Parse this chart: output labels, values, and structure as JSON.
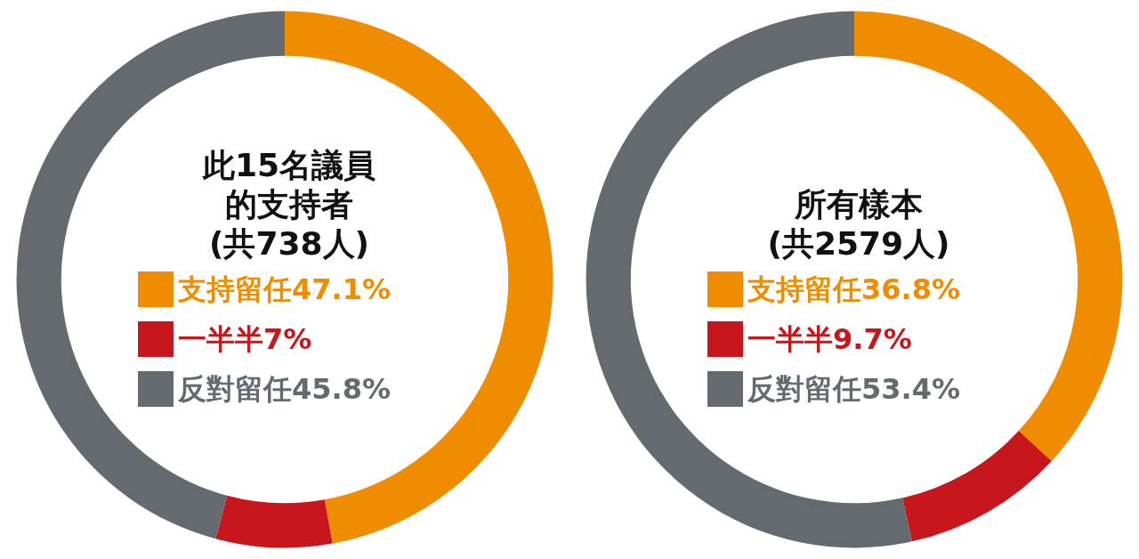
{
  "chart_data": [
    {
      "type": "donut",
      "title": "此15名議員的支持者",
      "subtitle": "(共738人)",
      "categories": [
        "支持留任",
        "一半半",
        "反對留任"
      ],
      "values": [
        47.1,
        7,
        45.8
      ],
      "value_labels": [
        "47.1%",
        "7%",
        "45.8%"
      ],
      "colors": [
        "#f08c00",
        "#c8161d",
        "#646a70"
      ],
      "legend": "center"
    },
    {
      "type": "donut",
      "title": "所有樣本",
      "subtitle": "(共2579人)",
      "categories": [
        "支持留任",
        "一半半",
        "反對留任"
      ],
      "values": [
        36.8,
        9.7,
        53.4
      ],
      "value_labels": [
        "36.8%",
        "9.7%",
        "53.4%"
      ],
      "colors": [
        "#f08c00",
        "#c8161d",
        "#646a70"
      ],
      "legend": "center"
    }
  ]
}
